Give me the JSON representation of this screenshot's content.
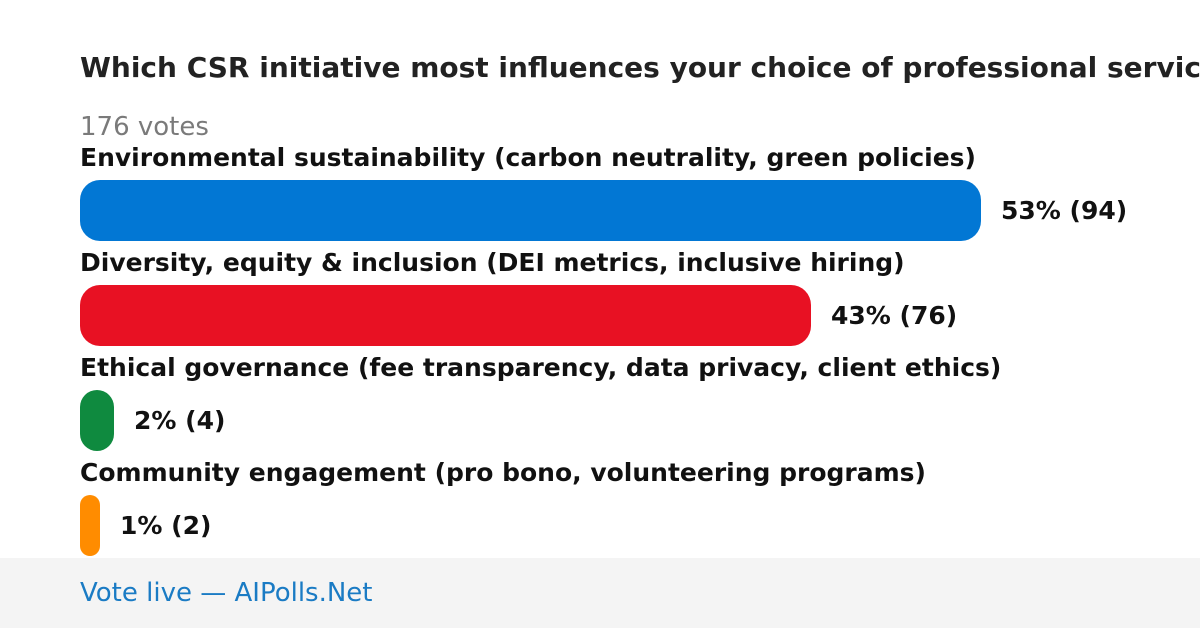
{
  "poll": {
    "title": "Which CSR initiative most influences your choice of professional services?",
    "votes_label": "176 votes"
  },
  "chart_data": {
    "type": "bar",
    "orientation": "horizontal",
    "categories": [
      "Environmental sustainability (carbon neutrality, green policies)",
      "Diversity, equity & inclusion (DEI metrics, inclusive hiring)",
      "Ethical governance (fee transparency, data privacy, client ethics)",
      "Community engagement (pro bono, volunteering programs)"
    ],
    "percents": [
      53,
      43,
      2,
      1
    ],
    "counts": [
      94,
      76,
      4,
      2
    ],
    "value_labels": [
      "53% (94)",
      "43% (76)",
      "2% (4)",
      "1% (2)"
    ],
    "colors": [
      "#0277d4",
      "#e81123",
      "#0f8a3f",
      "#ff8c00"
    ],
    "total_votes": 176
  },
  "footer": {
    "link_text": "Vote live — AIPolls.Net"
  }
}
